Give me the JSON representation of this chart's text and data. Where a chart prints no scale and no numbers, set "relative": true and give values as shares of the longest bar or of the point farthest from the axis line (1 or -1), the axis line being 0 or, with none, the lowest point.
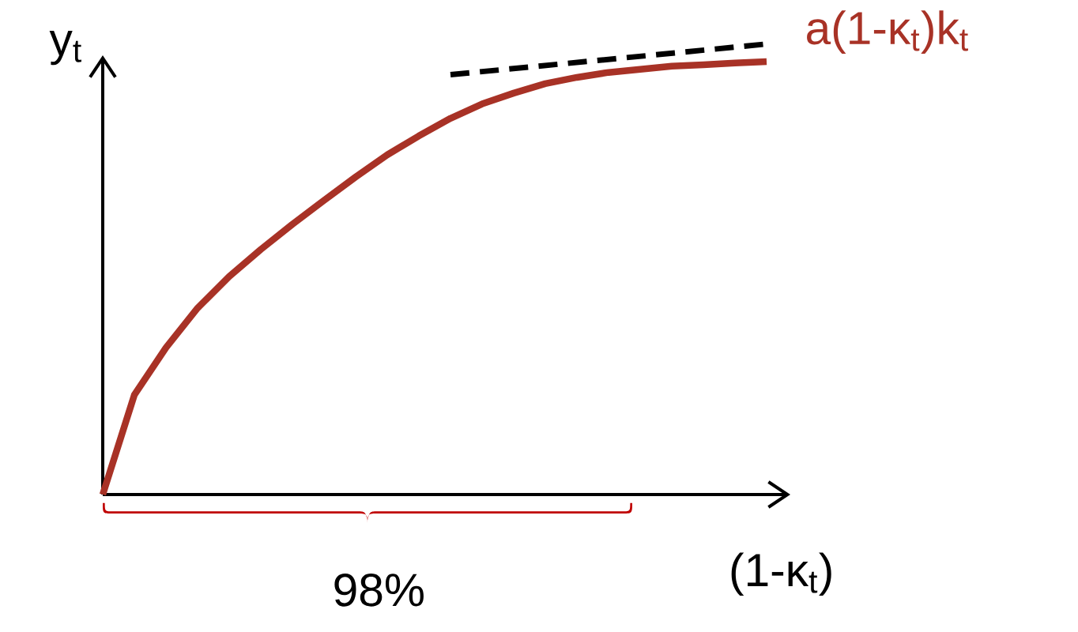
{
  "chart_data": {
    "type": "line",
    "relative": true,
    "xlabel": "(1-κ$_{t}$)",
    "ylabel": "y$_{t}$",
    "annotations": [
      "98%"
    ],
    "categories": [
      null,
      null,
      null,
      null,
      null,
      null,
      null,
      null,
      null,
      null,
      null,
      null,
      null,
      null,
      null,
      null,
      null,
      null,
      null,
      null,
      null,
      null
    ],
    "series": [
      {
        "name": "a(1-κ$_{t}$)k$_{t}$",
        "color": "#a83226",
        "values": [
          0,
          0.221,
          0.326,
          0.414,
          0.484,
          0.544,
          0.6,
          0.653,
          0.705,
          0.754,
          0.796,
          0.835,
          0.867,
          0.891,
          0.912,
          0.926,
          0.937,
          0.944,
          0.951,
          0.954,
          0.958,
          0.961
        ]
      },
      {
        "color": "#000000",
        "line_style": "dashed",
        "values": [
          null,
          null,
          null,
          null,
          null,
          null,
          null,
          null,
          null,
          null,
          null,
          0.932,
          null,
          null,
          null,
          null,
          null,
          null,
          null,
          null,
          null,
          1.0
        ]
      }
    ]
  }
}
